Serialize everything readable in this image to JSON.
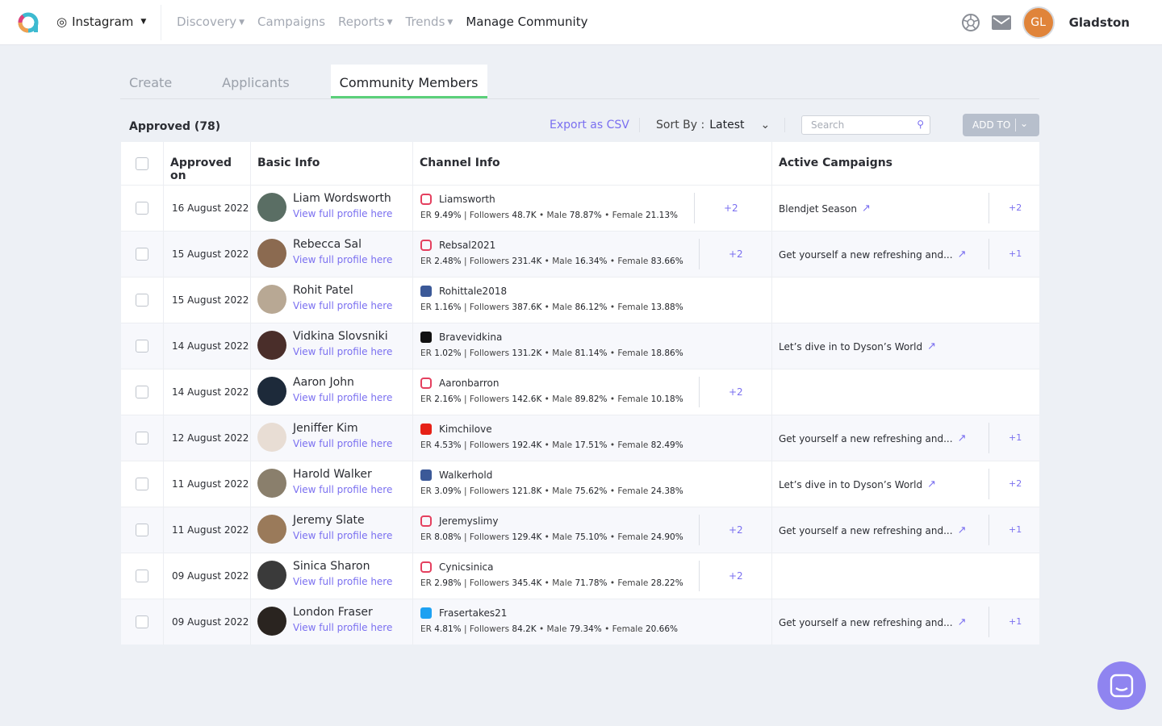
{
  "header": {
    "platform": "Instagram",
    "nav": [
      "Discovery",
      "Campaigns",
      "Reports",
      "Trends",
      "Manage Community"
    ],
    "nav_dropdowns": [
      true,
      false,
      true,
      true,
      false
    ],
    "user_initials": "GL",
    "user_name": "Gladston"
  },
  "tabs": [
    "Create",
    "Applicants",
    "Community Members"
  ],
  "toolbar": {
    "approved": "Approved (78)",
    "export": "Export as CSV",
    "sort_label": "Sort By :",
    "sort_value": "Latest",
    "search_placeholder": "Search",
    "add_to": "ADD TO"
  },
  "columns": [
    "Approved on",
    "Basic Info",
    "Channel Info",
    "Active Campaigns"
  ],
  "labels": {
    "view": "View full profile here",
    "er": "ER",
    "followers": "Followers",
    "male": "Male",
    "female": "Female"
  },
  "colors": {
    "accent": "#7a6ff0",
    "tab_underline": "#5bd07a",
    "instagram": "#e4405f",
    "facebook": "#3b5998",
    "tiktok": "#111111",
    "youtube": "#e62117",
    "twitter": "#1da1f2"
  },
  "rows": [
    {
      "date": "16 August 2022",
      "name": "Liam Wordsworth",
      "platform": "instagram",
      "handle": "Liamsworth",
      "er": "9.49%",
      "followers": "48.7K",
      "male": "78.87%",
      "female": "21.13%",
      "more": "+2",
      "campaign": "Blendjet Season",
      "camp_more": "+2"
    },
    {
      "date": "15 August 2022",
      "name": "Rebecca Sal",
      "platform": "instagram",
      "handle": "Rebsal2021",
      "er": "2.48%",
      "followers": "231.4K",
      "male": "16.34%",
      "female": "83.66%",
      "more": "+2",
      "campaign": "Get yourself a new refreshing and...",
      "camp_more": "+1"
    },
    {
      "date": "15 August 2022",
      "name": "Rohit Patel",
      "platform": "facebook",
      "handle": "Rohittale2018",
      "er": "1.16%",
      "followers": "387.6K",
      "male": "86.12%",
      "female": "13.88%"
    },
    {
      "date": "14 August 2022",
      "name": "Vidkina Slovsniki",
      "platform": "tiktok",
      "handle": "Bravevidkina",
      "er": "1.02%",
      "followers": "131.2K",
      "male": "81.14%",
      "female": "18.86%",
      "campaign": "Let’s dive in to Dyson’s World"
    },
    {
      "date": "14 August 2022",
      "name": "Aaron John",
      "platform": "instagram",
      "handle": "Aaronbarron",
      "er": "2.16%",
      "followers": "142.6K",
      "male": "89.82%",
      "female": "10.18%",
      "more": "+2"
    },
    {
      "date": "12 August 2022",
      "name": "Jeniffer Kim",
      "platform": "youtube",
      "handle": "Kimchilove",
      "er": "4.53%",
      "followers": "192.4K",
      "male": "17.51%",
      "female": "82.49%",
      "campaign": "Get yourself a new refreshing and...",
      "camp_more": "+1"
    },
    {
      "date": "11 August 2022",
      "name": "Harold Walker",
      "platform": "facebook",
      "handle": "Walkerhold",
      "er": "3.09%",
      "followers": "121.8K",
      "male": "75.62%",
      "female": "24.38%",
      "campaign": "Let’s dive in to Dyson’s World",
      "camp_more": "+2"
    },
    {
      "date": "11 August 2022",
      "name": "Jeremy Slate",
      "platform": "instagram",
      "handle": "Jeremyslimy",
      "er": "8.08%",
      "followers": "129.4K",
      "male": "75.10%",
      "female": "24.90%",
      "more": "+2",
      "campaign": "Get yourself a new refreshing and...",
      "camp_more": "+1"
    },
    {
      "date": "09 August 2022",
      "name": "Sinica Sharon",
      "platform": "instagram",
      "handle": "Cynicsinica",
      "er": "2.98%",
      "followers": "345.4K",
      "male": "71.78%",
      "female": "28.22%",
      "more": "+2"
    },
    {
      "date": "09 August 2022",
      "name": "London Fraser",
      "platform": "twitter",
      "handle": "Frasertakes21",
      "er": "4.81%",
      "followers": "84.2K",
      "male": "79.34%",
      "female": "20.66%",
      "campaign": "Get yourself a new refreshing and...",
      "camp_more": "+1"
    }
  ]
}
